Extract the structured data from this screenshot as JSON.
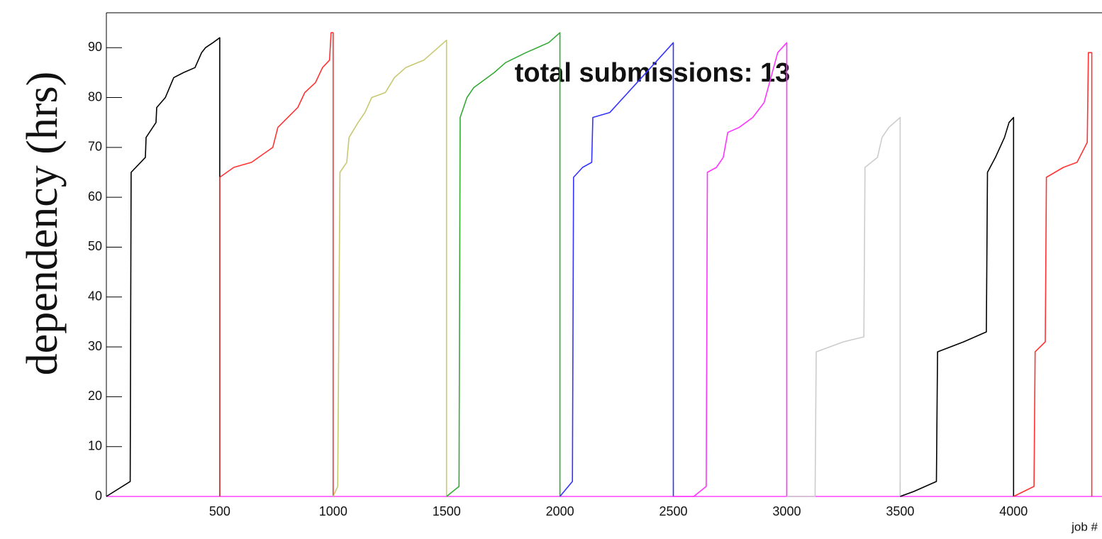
{
  "chart_data": {
    "type": "line",
    "annotation": "total submissions: 13",
    "x_label": "job #",
    "y_label": "dependency (hrs)",
    "xlim": [
      0,
      4390
    ],
    "ylim": [
      0,
      97
    ],
    "xticks": [
      500,
      1000,
      1500,
      2000,
      2500,
      3000,
      3500,
      4000
    ],
    "yticks": [
      0,
      10,
      20,
      30,
      40,
      50,
      60,
      70,
      80,
      90
    ],
    "series": [
      {
        "color": "#ff44ff",
        "x": [
          0,
          4390
        ],
        "values": [
          0,
          0
        ]
      },
      {
        "color": "#000000",
        "x": [
          0,
          105,
          109,
          172,
          175,
          219,
          222,
          260,
          297,
          340,
          391,
          420,
          437,
          470,
          500,
          500
        ],
        "values": [
          0,
          3,
          65,
          68,
          72,
          75,
          78,
          80,
          84,
          85,
          86,
          89,
          90,
          91,
          92,
          0
        ]
      },
      {
        "color": "#ff3333",
        "x": [
          500,
          500,
          562,
          640,
          734,
          756,
          800,
          844,
          875,
          922,
          953,
          984,
          991,
          1000,
          1000
        ],
        "values": [
          0,
          64,
          66,
          67,
          70,
          74,
          76,
          78,
          81,
          83,
          86,
          87.5,
          93,
          93,
          0
        ]
      },
      {
        "color": "#c8c870",
        "x": [
          1000,
          1020,
          1030,
          1060,
          1070,
          1110,
          1140,
          1170,
          1230,
          1270,
          1320,
          1400,
          1500,
          1500
        ],
        "values": [
          0,
          2,
          65,
          67,
          72,
          75,
          77,
          80,
          81,
          84,
          86,
          87.5,
          91.5,
          0
        ]
      },
      {
        "color": "#33aa33",
        "x": [
          1500,
          1555,
          1560,
          1590,
          1620,
          1710,
          1760,
          1850,
          1950,
          2000,
          2000
        ],
        "values": [
          0,
          2,
          76,
          80,
          82,
          85,
          87,
          89,
          91,
          93,
          0
        ]
      },
      {
        "color": "#3333ff",
        "x": [
          2000,
          2055,
          2060,
          2100,
          2140,
          2145,
          2220,
          2280,
          2360,
          2420,
          2460,
          2500,
          2500
        ],
        "values": [
          0,
          3,
          64,
          66,
          67,
          76,
          77,
          80,
          84,
          87,
          89,
          91,
          0
        ]
      },
      {
        "color": "#ff33ff",
        "x": [
          2500,
          2590,
          2645,
          2650,
          2690,
          2720,
          2740,
          2790,
          2850,
          2900,
          2930,
          2960,
          3000,
          3000
        ],
        "values": [
          0,
          0,
          2,
          65,
          66,
          68,
          73,
          74,
          76,
          79,
          84,
          89,
          91,
          0
        ]
      },
      {
        "color": "#cccccc",
        "x": [
          3000,
          3125,
          3130,
          3250,
          3340,
          3345,
          3400,
          3420,
          3450,
          3500,
          3500
        ],
        "values": [
          0,
          0,
          29,
          31,
          32,
          66,
          68,
          72,
          74,
          76,
          0
        ]
      },
      {
        "color": "#000000",
        "x": [
          3500,
          3560,
          3660,
          3665,
          3780,
          3880,
          3885,
          3920,
          3960,
          3980,
          4000,
          4000
        ],
        "values": [
          0,
          1,
          3,
          29,
          31,
          33,
          65,
          68,
          72,
          75,
          76,
          0
        ]
      },
      {
        "color": "#ff3333",
        "x": [
          4000,
          4090,
          4095,
          4140,
          4145,
          4220,
          4280,
          4325,
          4330,
          4345,
          4345
        ],
        "values": [
          0,
          2,
          29,
          31,
          64,
          66,
          67,
          71,
          89,
          89,
          0
        ]
      }
    ]
  }
}
